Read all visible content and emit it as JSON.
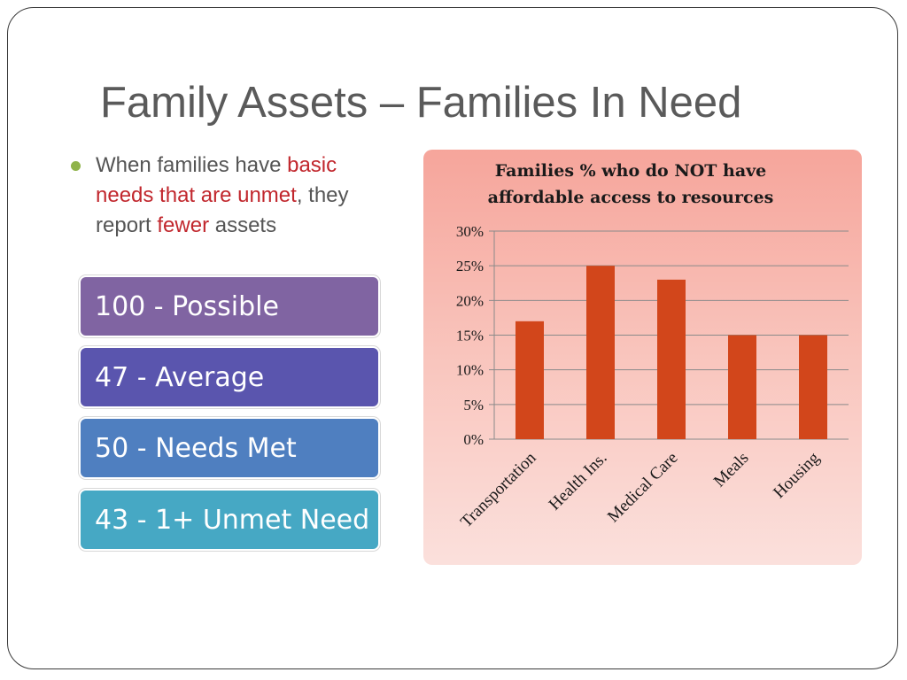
{
  "slide": {
    "title": "Family Assets – Families In Need",
    "bullet": {
      "part1": "When families have ",
      "part2": "basic needs that are unmet",
      "part3": ", they report ",
      "part4": "fewer",
      "part5": " assets"
    },
    "stats": [
      {
        "label": "100 - Possible",
        "color": "#8064a2"
      },
      {
        "label": "47 - Average",
        "color": "#5a55ae"
      },
      {
        "label": "50 - Needs Met",
        "color": "#4f7fc0"
      },
      {
        "label": "43 - 1+ Unmet Need",
        "color": "#46a8c4"
      }
    ],
    "colors": {
      "title": "#5a5a5a",
      "highlight": "#c1272d",
      "bullet_dot": "#8fb34a",
      "bar": "#d2461b"
    }
  },
  "chart_data": {
    "type": "bar",
    "title_lines": [
      "Families % who do NOT have",
      "affordable access to resources"
    ],
    "categories": [
      "Transportation",
      "Health Ins.",
      "Medical Care",
      "Meals",
      "Housing"
    ],
    "values": [
      17,
      25,
      23,
      15,
      15
    ],
    "ylim": [
      0,
      30
    ],
    "yticks": [
      0,
      5,
      10,
      15,
      20,
      25,
      30
    ],
    "ytick_labels": [
      "0%",
      "5%",
      "10%",
      "15%",
      "20%",
      "25%",
      "30%"
    ],
    "grid": true,
    "xlabel": "",
    "ylabel": ""
  }
}
